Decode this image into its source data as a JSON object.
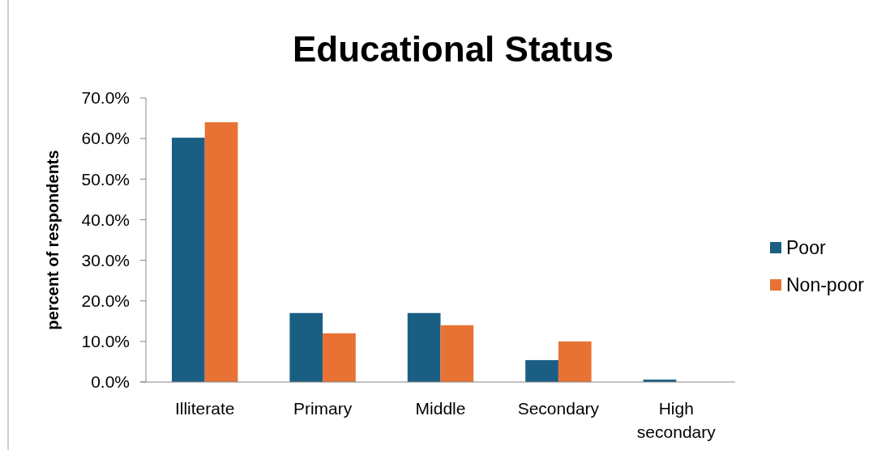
{
  "chart_data": {
    "type": "bar",
    "title": "Educational Status",
    "ylabel": "percent of respondents",
    "categories": [
      "Illiterate",
      "Primary",
      "Middle",
      "Secondary",
      "High secondary"
    ],
    "series": [
      {
        "name": "Poor",
        "color": "#1a5f83",
        "values": [
          60.2,
          17.0,
          17.0,
          5.4,
          0.6
        ]
      },
      {
        "name": "Non-poor",
        "color": "#e87234",
        "values": [
          64.0,
          12.0,
          14.0,
          10.0,
          0
        ]
      }
    ],
    "ylim": [
      0,
      70
    ],
    "yticks": [
      {
        "value": 0,
        "label": "0.0%"
      },
      {
        "value": 10,
        "label": "10.0%"
      },
      {
        "value": 20,
        "label": "20.0%"
      },
      {
        "value": 30,
        "label": "30.0%"
      },
      {
        "value": 40,
        "label": "40.0%"
      },
      {
        "value": 50,
        "label": "50.0%"
      },
      {
        "value": 60,
        "label": "60.0%"
      },
      {
        "value": 70,
        "label": "70.0%"
      }
    ],
    "grid": false,
    "legend": "right"
  }
}
